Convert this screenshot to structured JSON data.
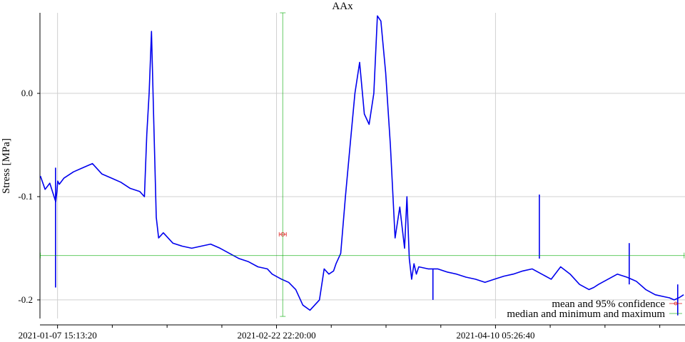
{
  "chart_data": {
    "type": "line",
    "title": "AAx",
    "xlabel": "",
    "ylabel": "Stress [MPa]",
    "x_range": [
      "2021-01-03 22:00:00",
      "2021-05-20 07:00:00"
    ],
    "ylim": [
      -0.218,
      0.078
    ],
    "y_ticks": [
      0.0,
      -0.1,
      -0.2
    ],
    "y_tick_labels": [
      "0.0",
      "-0.1",
      "-0.2"
    ],
    "x_ticks": [
      "2021-01-07 15:13:20",
      "2021-02-22 22:20:00",
      "2021-04-10 05:26:40"
    ],
    "x_tick_labels": [
      "2021-01-07 15:13:20",
      "2021-02-22 22:20:00",
      "2021-04-10 05:26:40"
    ],
    "x_minor_ticks": [
      "2021-01-19 05:00:00",
      "2021-01-30 19:00:00",
      "2021-02-11 09:00:00",
      "2021-03-06 12:00:00",
      "2021-03-18 02:00:00",
      "2021-03-29 16:00:00",
      "2021-04-21 19:00:00",
      "2021-05-03 09:00:00",
      "2021-05-14 23:00:00"
    ],
    "grid": true,
    "legend_position": "bottom-right",
    "series": [
      {
        "color": "#0000ee",
        "x": [
          "2021-01-04 00:00",
          "2021-01-05 00:00",
          "2021-01-06 00:00",
          "2021-01-07 06:00",
          "2021-01-07 12:00",
          "2021-01-07 16:00",
          "2021-01-08 00:00",
          "2021-01-09 00:00",
          "2021-01-11 00:00",
          "2021-01-13 00:00",
          "2021-01-15 00:00",
          "2021-01-17 00:00",
          "2021-01-19 00:00",
          "2021-01-21 00:00",
          "2021-01-23 00:00",
          "2021-01-25 00:00",
          "2021-01-26 00:00",
          "2021-01-26 12:00",
          "2021-01-27 00:00",
          "2021-01-27 12:00",
          "2021-01-28 00:00",
          "2021-01-28 12:00",
          "2021-01-29 00:00",
          "2021-01-30 00:00",
          "2021-02-01 00:00",
          "2021-02-03 00:00",
          "2021-02-05 00:00",
          "2021-02-07 00:00",
          "2021-02-09 00:00",
          "2021-02-11 00:00",
          "2021-02-13 00:00",
          "2021-02-15 00:00",
          "2021-02-17 00:00",
          "2021-02-19 00:00",
          "2021-02-21 00:00",
          "2021-02-22 00:00",
          "2021-02-24 00:00",
          "2021-02-25 12:00",
          "2021-02-27 00:00",
          "2021-02-28 12:00",
          "2021-03-02 00:00",
          "2021-03-04 00:00",
          "2021-03-05 00:00",
          "2021-03-06 00:00",
          "2021-03-07 00:00",
          "2021-03-07 12:00",
          "2021-03-08 12:00",
          "2021-03-09 12:00",
          "2021-03-10 12:00",
          "2021-03-11 12:00",
          "2021-03-12 12:00",
          "2021-03-13 12:00",
          "2021-03-14 12:00",
          "2021-03-15 12:00",
          "2021-03-16 06:00",
          "2021-03-17 00:00",
          "2021-03-18 00:00",
          "2021-03-19 00:00",
          "2021-03-20 00:00",
          "2021-03-21 00:00",
          "2021-03-22 00:00",
          "2021-03-22 12:00",
          "2021-03-23 00:00",
          "2021-03-23 12:00",
          "2021-03-24 00:00",
          "2021-03-24 12:00",
          "2021-03-25 00:00",
          "2021-03-27 00:00",
          "2021-03-29 00:00",
          "2021-03-31 00:00",
          "2021-04-02 00:00",
          "2021-04-04 00:00",
          "2021-04-06 00:00",
          "2021-04-08 00:00",
          "2021-04-10 00:00",
          "2021-04-12 00:00",
          "2021-04-14 00:00",
          "2021-04-16 00:00",
          "2021-04-18 00:00",
          "2021-04-20 00:00",
          "2021-04-22 00:00",
          "2021-04-24 00:00",
          "2021-04-26 00:00",
          "2021-04-28 00:00",
          "2021-04-30 00:00",
          "2021-05-01 00:00",
          "2021-05-02 00:00",
          "2021-05-04 00:00",
          "2021-05-06 00:00",
          "2021-05-08 00:00",
          "2021-05-10 00:00",
          "2021-05-12 00:00",
          "2021-05-14 00:00",
          "2021-05-16 00:00",
          "2021-05-17 00:00",
          "2021-05-18 00:00",
          "2021-05-19 00:00",
          "2021-05-20 00:00"
        ],
        "y": [
          -0.08,
          -0.093,
          -0.087,
          -0.105,
          -0.095,
          -0.085,
          -0.088,
          -0.082,
          -0.076,
          -0.072,
          -0.068,
          -0.078,
          -0.082,
          -0.086,
          -0.092,
          -0.095,
          -0.1,
          -0.04,
          0.0,
          0.06,
          -0.03,
          -0.12,
          -0.14,
          -0.135,
          -0.145,
          -0.148,
          -0.15,
          -0.148,
          -0.146,
          -0.15,
          -0.155,
          -0.16,
          -0.163,
          -0.168,
          -0.17,
          -0.175,
          -0.18,
          -0.183,
          -0.19,
          -0.205,
          -0.21,
          -0.2,
          -0.17,
          -0.175,
          -0.172,
          -0.165,
          -0.155,
          -0.1,
          -0.05,
          0.0,
          0.03,
          -0.02,
          -0.03,
          0.0,
          0.075,
          0.07,
          0.02,
          -0.05,
          -0.14,
          -0.11,
          -0.15,
          -0.1,
          -0.16,
          -0.18,
          -0.165,
          -0.175,
          -0.168,
          -0.17,
          -0.17,
          -0.173,
          -0.175,
          -0.178,
          -0.18,
          -0.183,
          -0.18,
          -0.177,
          -0.175,
          -0.172,
          -0.17,
          -0.175,
          -0.18,
          -0.168,
          -0.175,
          -0.185,
          -0.19,
          -0.188,
          -0.185,
          -0.18,
          -0.175,
          -0.178,
          -0.182,
          -0.19,
          -0.195,
          -0.197,
          -0.198,
          -0.2,
          -0.198,
          -0.195
        ]
      }
    ],
    "spikes": [
      {
        "x": "2021-01-07 05:00",
        "y_low": -0.188,
        "y_high": -0.072
      },
      {
        "x": "2021-04-19 12:00",
        "y_low": -0.16,
        "y_high": -0.098
      },
      {
        "x": "2021-05-08 12:00",
        "y_low": -0.185,
        "y_high": -0.145
      },
      {
        "x": "2021-03-28 00:00",
        "y_low": -0.2,
        "y_high": -0.17
      },
      {
        "x": "2021-05-18 18:00",
        "y_low": -0.215,
        "y_high": -0.185
      }
    ],
    "mean_ci": {
      "label": "mean and 95% confidence",
      "color": "#dd0000",
      "x": "2021-02-24 06:00:00",
      "y": -0.1365,
      "x_low": "2021-02-23 12:00:00",
      "x_high": "2021-02-25 00:00:00"
    },
    "median_minmax": {
      "label": "median and minimum and maximum",
      "color": "#00aa00",
      "x": "2021-02-24 06:00:00",
      "y": -0.157,
      "x_min": "2021-01-04 00:00:00",
      "x_max": "2021-05-20 06:00:00",
      "y_min": -0.216,
      "y_max": 0.078
    }
  }
}
